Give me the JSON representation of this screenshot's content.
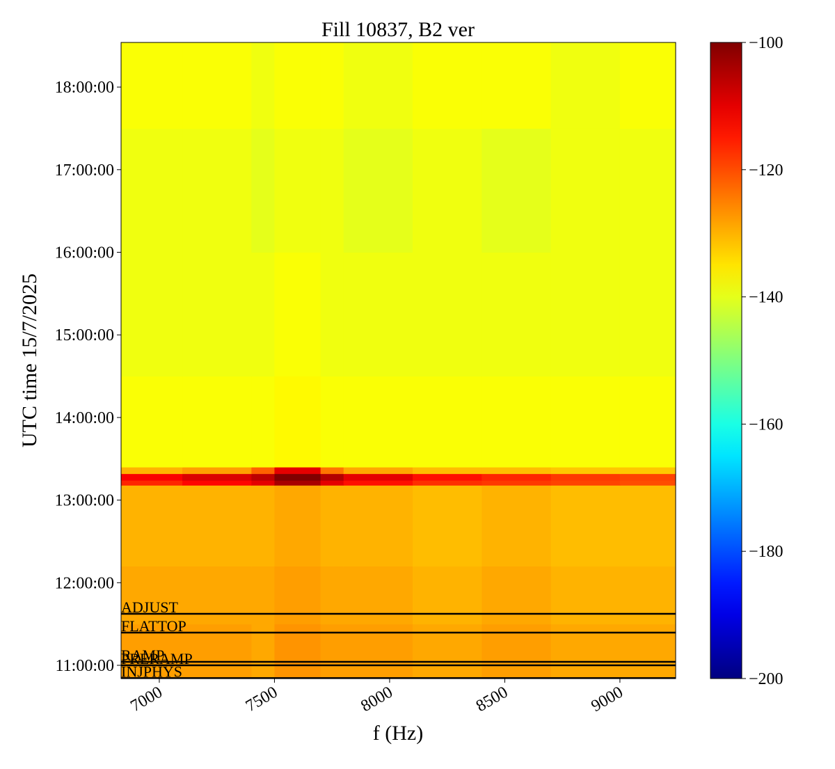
{
  "chart_data": {
    "type": "heatmap",
    "title": "Fill 10837, B2 ver",
    "x_label": "f (Hz)",
    "y_label": "UTC time 15/7/2025",
    "colormap": "jet",
    "x_bins": [
      6834,
      7100,
      7400,
      7500,
      7700,
      7800,
      8100,
      8400,
      8700,
      9000,
      9242
    ],
    "y_bins": [
      10.84,
      11.5,
      12.2,
      13.18,
      13.24,
      13.32,
      13.4,
      14.5,
      16.0,
      17.5,
      18.54
    ],
    "values": [
      [
        -128,
        -128,
        -129,
        -127,
        -128,
        -128,
        -129,
        -128,
        -129,
        -129
      ],
      [
        -129,
        -129,
        -129,
        -128,
        -129,
        -129,
        -130,
        -129,
        -130,
        -130
      ],
      [
        -130,
        -130,
        -130,
        -129,
        -130,
        -130,
        -131,
        -130,
        -131,
        -131
      ],
      [
        -116,
        -113,
        -110,
        -104,
        -110,
        -114,
        -117,
        -118,
        -119,
        -120
      ],
      [
        -112,
        -109,
        -106,
        -100,
        -105,
        -110,
        -114,
        -116,
        -118,
        -119
      ],
      [
        -130,
        -128,
        -122,
        -110,
        -124,
        -129,
        -131,
        -131,
        -132,
        -132
      ],
      [
        -138,
        -138,
        -138,
        -137,
        -138,
        -138,
        -138,
        -138,
        -138,
        -138
      ],
      [
        -139,
        -139,
        -139,
        -138,
        -139,
        -139,
        -139,
        -139,
        -139,
        -139
      ],
      [
        -139,
        -139,
        -140,
        -139,
        -139,
        -140,
        -139,
        -140,
        -139,
        -139
      ],
      [
        -138,
        -138,
        -139,
        -138,
        -138,
        -139,
        -138,
        -138,
        -139,
        -138
      ]
    ],
    "xlim": [
      6834,
      9242
    ],
    "ylim": [
      10.84,
      18.54
    ],
    "xticks": [
      7000,
      7500,
      8000,
      8500,
      9000
    ],
    "yticks": [
      {
        "value": 11,
        "label": "11:00:00"
      },
      {
        "value": 12,
        "label": "12:00:00"
      },
      {
        "value": 13,
        "label": "13:00:00"
      },
      {
        "value": 14,
        "label": "14:00:00"
      },
      {
        "value": 15,
        "label": "15:00:00"
      },
      {
        "value": 16,
        "label": "16:00:00"
      },
      {
        "value": 17,
        "label": "17:00:00"
      },
      {
        "value": 18,
        "label": "18:00:00"
      }
    ],
    "clim": [
      -200,
      -100
    ],
    "cticks": [
      {
        "value": -200,
        "label": "−200"
      },
      {
        "value": -180,
        "label": "−180"
      },
      {
        "value": -160,
        "label": "−160"
      },
      {
        "value": -140,
        "label": "−140"
      },
      {
        "value": -120,
        "label": "−120"
      },
      {
        "value": -100,
        "label": "−100"
      }
    ],
    "events": [
      {
        "label": "ADJUST",
        "time": 11.623
      },
      {
        "label": "FLATTOP",
        "time": 11.396
      },
      {
        "label": "RAMP",
        "time": 11.042
      },
      {
        "label": "PRERAMP",
        "time": 11.0
      },
      {
        "label": "INJPHYS",
        "time": 10.845
      }
    ]
  }
}
